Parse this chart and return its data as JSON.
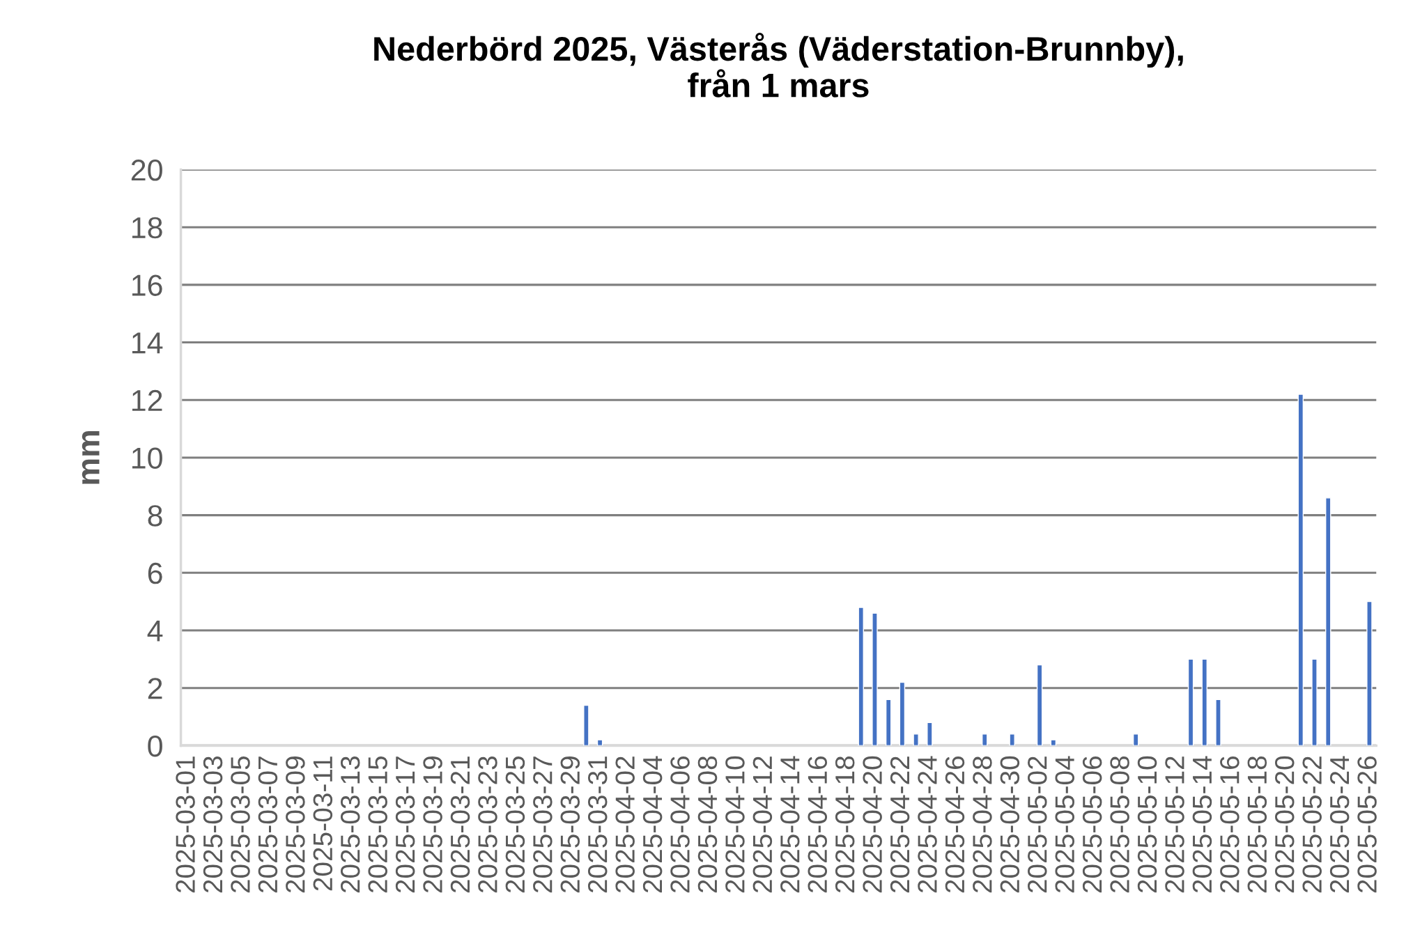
{
  "chart_data": {
    "type": "bar",
    "title": "Nederbörd 2025, Västerås (Väderstation-Brunnby),\nfrån 1 mars",
    "ylabel": "mm",
    "categories": [
      "2025-03-01",
      null,
      "2025-03-03",
      null,
      "2025-03-05",
      null,
      "2025-03-07",
      null,
      "2025-03-09",
      null,
      "2025-03-11",
      null,
      "2025-03-13",
      null,
      "2025-03-15",
      null,
      "2025-03-17",
      null,
      "2025-03-19",
      null,
      "2025-03-21",
      null,
      "2025-03-23",
      null,
      "2025-03-25",
      null,
      "2025-03-27",
      null,
      "2025-03-29",
      null,
      "2025-03-31",
      null,
      "2025-04-02",
      null,
      "2025-04-04",
      null,
      "2025-04-06",
      null,
      "2025-04-08",
      null,
      "2025-04-10",
      null,
      "2025-04-12",
      null,
      "2025-04-14",
      null,
      "2025-04-16",
      null,
      "2025-04-18",
      null,
      "2025-04-20",
      null,
      "2025-04-22",
      null,
      "2025-04-24",
      null,
      "2025-04-26",
      null,
      "2025-04-28",
      null,
      "2025-04-30",
      null,
      "2025-05-02",
      null,
      "2025-05-04",
      null,
      "2025-05-06",
      null,
      "2025-05-08",
      null,
      "2025-05-10",
      null,
      "2025-05-12",
      null,
      "2025-05-14",
      null,
      "2025-05-16",
      null,
      "2025-05-18",
      null,
      "2025-05-20",
      null,
      "2025-05-22",
      null,
      "2025-05-24",
      null,
      "2025-05-26"
    ],
    "values": [
      0,
      0,
      0,
      0,
      0,
      0,
      0,
      0,
      0,
      0,
      0,
      0,
      0,
      0,
      0,
      0,
      0,
      0,
      0,
      0,
      0,
      0,
      0,
      0,
      0,
      0,
      0,
      0,
      0,
      1.4,
      0.2,
      0,
      0,
      0,
      0,
      0,
      0,
      0,
      0,
      0,
      0,
      0,
      0,
      0,
      0,
      0,
      0,
      0,
      0,
      4.8,
      4.6,
      1.6,
      2.2,
      0.4,
      0.8,
      0,
      0,
      0,
      0.4,
      0,
      0.4,
      0,
      2.8,
      0.2,
      0,
      0,
      0,
      0,
      0,
      0.4,
      0,
      0,
      0,
      3.0,
      3.0,
      1.6,
      0,
      0,
      0,
      0,
      0,
      12.2,
      3.0,
      8.6,
      0,
      0,
      5.0
    ],
    "color": "#4472c4",
    "ylim": [
      0,
      20
    ],
    "yticks": [
      0,
      2,
      4,
      6,
      8,
      10,
      12,
      14,
      16,
      18,
      20
    ],
    "grid": "y"
  }
}
